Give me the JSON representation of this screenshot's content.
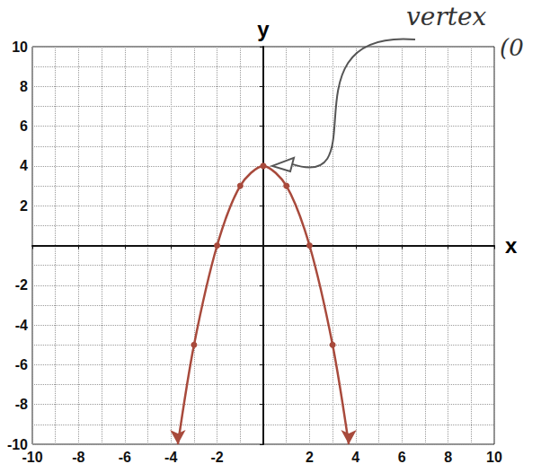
{
  "chart_data": {
    "type": "line",
    "x": [
      -3.7,
      -3,
      -2,
      -1,
      0,
      1,
      2,
      3,
      3.7
    ],
    "values": [
      -10,
      -5,
      0,
      3,
      4,
      3,
      0,
      -5,
      -10
    ],
    "color": "#a84a3c",
    "marker": "circle",
    "line_style": "solid",
    "xlabel": "x",
    "ylabel": "y",
    "xlim": [
      -10,
      10
    ],
    "ylim": [
      -10,
      10
    ],
    "xticks": [
      -10,
      -8,
      -6,
      -4,
      -2,
      2,
      4,
      6,
      8,
      10
    ],
    "yticks": [
      -10,
      -8,
      -6,
      -4,
      -2,
      2,
      4,
      6,
      8,
      10
    ],
    "grid": true,
    "annotation": "vertex (0"
  }
}
